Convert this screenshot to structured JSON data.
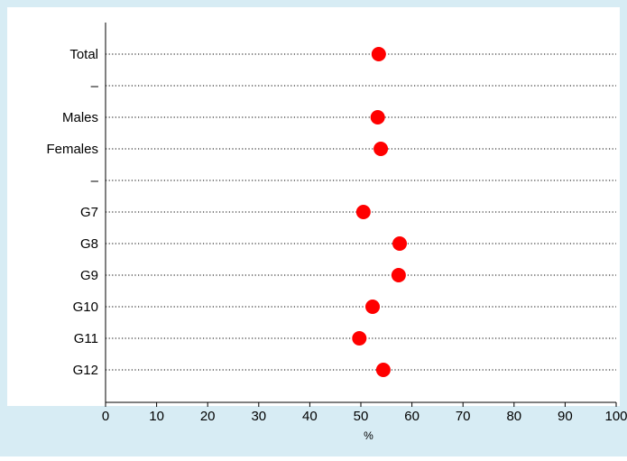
{
  "colors": {
    "background": "#d7ecf4",
    "plot_background": "#ffffff",
    "marker": "#ff0000",
    "axis": "#000000"
  },
  "chart_data": {
    "type": "scatter",
    "orientation": "horizontal-dot-plot",
    "categories": [
      "Total",
      "–",
      "Males",
      "Females",
      "–",
      "G7",
      "G8",
      "G9",
      "G10",
      "G11",
      "G12"
    ],
    "values": [
      53.5,
      null,
      53.3,
      53.9,
      null,
      50.5,
      57.6,
      57.4,
      52.3,
      49.7,
      54.4
    ],
    "xlabel": "%",
    "xlim": [
      0,
      100
    ],
    "xticks": [
      0,
      10,
      20,
      30,
      40,
      50,
      60,
      70,
      80,
      90,
      100
    ],
    "grid": "dotted horizontal guide lines per category",
    "legend": "none"
  }
}
